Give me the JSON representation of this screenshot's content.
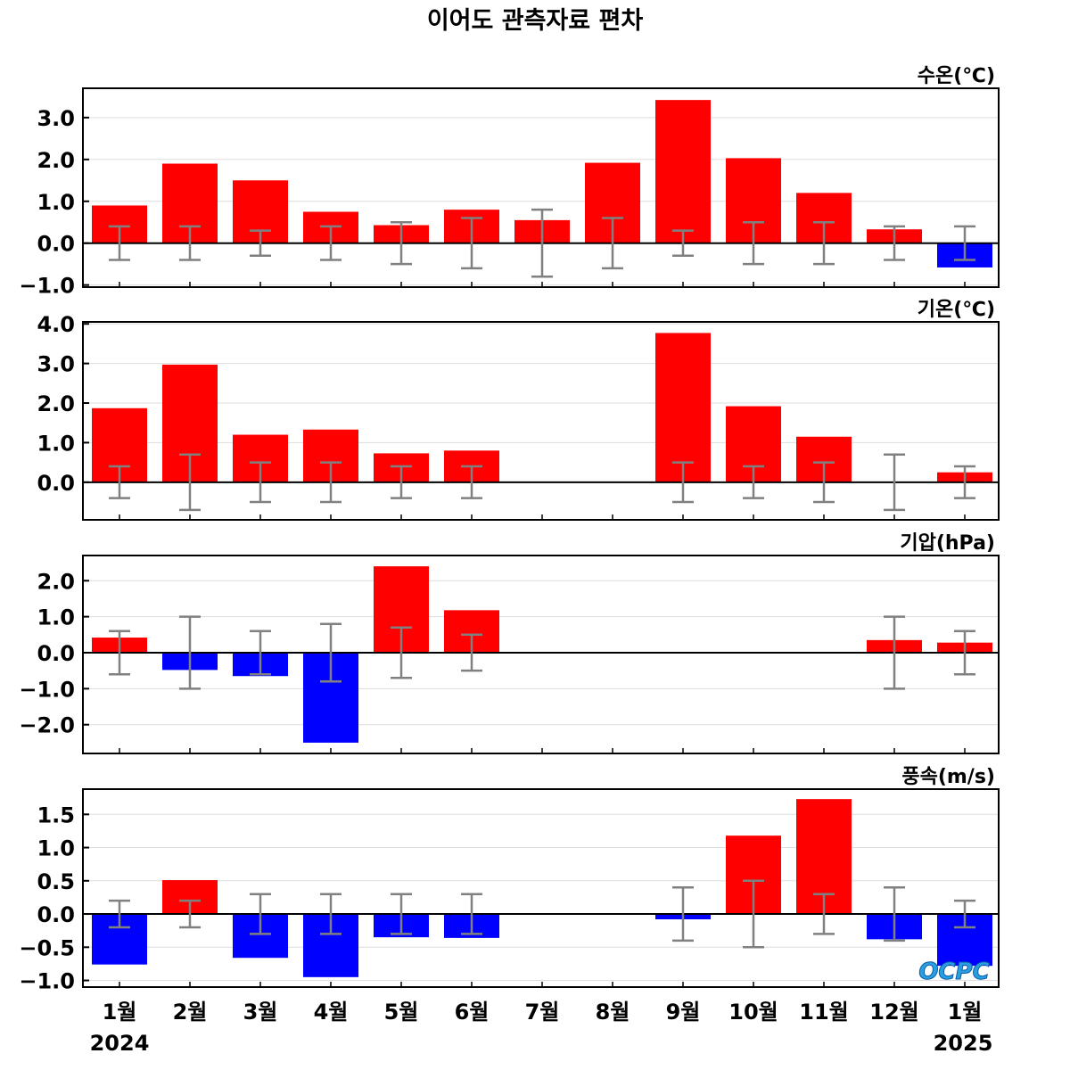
{
  "title": "이어도 관측자료 편차",
  "months": [
    "1월",
    "2월",
    "3월",
    "4월",
    "5월",
    "6월",
    "7월",
    "8월",
    "9월",
    "10월",
    "11월",
    "12월",
    "1월"
  ],
  "years": {
    "start": "2024",
    "end": "2025"
  },
  "logo": "OCPC",
  "colors": {
    "positive": "#ff0000",
    "negative": "#0000ff",
    "errorbar": "#808080",
    "zero_line": "#000000",
    "grid": "#dddddd"
  },
  "chart_data": [
    {
      "type": "bar",
      "title": "수온(℃)",
      "categories": [
        "1월",
        "2월",
        "3월",
        "4월",
        "5월",
        "6월",
        "7월",
        "8월",
        "9월",
        "10월",
        "11월",
        "12월",
        "1월"
      ],
      "values": [
        0.9,
        1.9,
        1.5,
        0.75,
        0.43,
        0.8,
        0.55,
        1.92,
        3.42,
        2.03,
        1.2,
        0.33,
        -0.58
      ],
      "error_low": [
        -0.4,
        -0.4,
        -0.3,
        -0.4,
        -0.5,
        -0.6,
        -0.8,
        -0.6,
        -0.3,
        -0.5,
        -0.5,
        -0.4,
        -0.4
      ],
      "error_high": [
        0.4,
        0.4,
        0.3,
        0.4,
        0.5,
        0.6,
        0.8,
        0.6,
        0.3,
        0.5,
        0.5,
        0.4,
        0.4
      ],
      "yticks": [
        -1.0,
        0.0,
        1.0,
        2.0,
        3.0
      ],
      "tick_labels": [
        "−1.0",
        "0.0",
        "1.0",
        "2.0",
        "3.0"
      ],
      "ylim": [
        -1.05,
        3.7
      ],
      "grid": true
    },
    {
      "type": "bar",
      "title": "기온(℃)",
      "categories": [
        "1월",
        "2월",
        "3월",
        "4월",
        "5월",
        "6월",
        "7월",
        "8월",
        "9월",
        "10월",
        "11월",
        "12월",
        "1월"
      ],
      "values": [
        1.87,
        2.97,
        1.2,
        1.33,
        0.73,
        0.8,
        null,
        null,
        3.77,
        1.92,
        1.15,
        0.0,
        0.25
      ],
      "error_low": [
        -0.4,
        -0.7,
        -0.5,
        -0.5,
        -0.4,
        -0.4,
        null,
        null,
        -0.5,
        -0.4,
        -0.5,
        -0.7,
        -0.4
      ],
      "error_high": [
        0.4,
        0.7,
        0.5,
        0.5,
        0.4,
        0.4,
        null,
        null,
        0.5,
        0.4,
        0.5,
        0.7,
        0.4
      ],
      "yticks": [
        0.0,
        1.0,
        2.0,
        3.0,
        4.0
      ],
      "tick_labels": [
        "0.0",
        "1.0",
        "2.0",
        "3.0",
        "4.0"
      ],
      "ylim": [
        -0.95,
        4.05
      ],
      "grid": true
    },
    {
      "type": "bar",
      "title": "기압(hPa)",
      "categories": [
        "1월",
        "2월",
        "3월",
        "4월",
        "5월",
        "6월",
        "7월",
        "8월",
        "9월",
        "10월",
        "11월",
        "12월",
        "1월"
      ],
      "values": [
        0.42,
        -0.48,
        -0.65,
        -2.5,
        2.4,
        1.18,
        null,
        null,
        null,
        null,
        null,
        0.35,
        0.28
      ],
      "error_low": [
        -0.6,
        -1.0,
        -0.6,
        -0.8,
        -0.7,
        -0.5,
        null,
        null,
        null,
        null,
        null,
        -1.0,
        -0.6
      ],
      "error_high": [
        0.6,
        1.0,
        0.6,
        0.8,
        0.7,
        0.5,
        null,
        null,
        null,
        null,
        null,
        1.0,
        0.6
      ],
      "yticks": [
        -2.0,
        -1.0,
        0.0,
        1.0,
        2.0
      ],
      "tick_labels": [
        "−2.0",
        "−1.0",
        "0.0",
        "1.0",
        "2.0"
      ],
      "ylim": [
        -2.8,
        2.7
      ],
      "grid": true
    },
    {
      "type": "bar",
      "title": "풍속(m/s)",
      "categories": [
        "1월",
        "2월",
        "3월",
        "4월",
        "5월",
        "6월",
        "7월",
        "8월",
        "9월",
        "10월",
        "11월",
        "12월",
        "1월"
      ],
      "values": [
        -0.76,
        0.51,
        -0.66,
        -0.95,
        -0.35,
        -0.36,
        null,
        null,
        -0.08,
        1.18,
        1.73,
        -0.38,
        -0.78
      ],
      "error_low": [
        -0.2,
        -0.2,
        -0.3,
        -0.3,
        -0.3,
        -0.3,
        null,
        null,
        -0.4,
        -0.5,
        -0.3,
        -0.4,
        -0.2
      ],
      "error_high": [
        0.2,
        0.2,
        0.3,
        0.3,
        0.3,
        0.3,
        null,
        null,
        0.4,
        0.5,
        0.3,
        0.4,
        0.2
      ],
      "yticks": [
        -1.0,
        -0.5,
        0.0,
        0.5,
        1.0,
        1.5
      ],
      "tick_labels": [
        "−1.0",
        "−0.5",
        "0.0",
        "0.5",
        "1.0",
        "1.5"
      ],
      "ylim": [
        -1.1,
        1.88
      ],
      "grid": true
    }
  ]
}
